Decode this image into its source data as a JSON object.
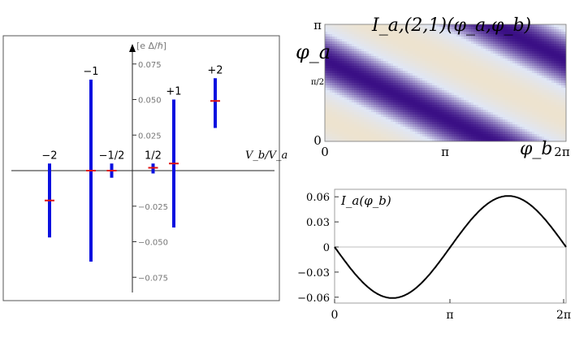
{
  "chart_data": [
    {
      "type": "scatter",
      "title": "",
      "xlabel": "V_b/V_a",
      "ylabel": "[e Δ/ℏ]",
      "ylim": [
        -0.085,
        0.085
      ],
      "yticks": [
        "0.075",
        "0.050",
        "0.025",
        "−0.025",
        "−0.050",
        "−0.075"
      ],
      "ytick_values": [
        0.075,
        0.05,
        0.025,
        -0.025,
        -0.05,
        -0.075
      ],
      "series": [
        {
          "label": "−2",
          "x": -2.0,
          "min": -0.047,
          "max": 0.005,
          "mid": -0.021
        },
        {
          "label": "−1",
          "x": -1.0,
          "min": -0.064,
          "max": 0.064,
          "mid": 0.0
        },
        {
          "label": "−1/2",
          "x": -0.5,
          "min": -0.005,
          "max": 0.005,
          "mid": 0.0
        },
        {
          "label": "1/2",
          "x": 0.5,
          "min": -0.002,
          "max": 0.005,
          "mid": 0.002
        },
        {
          "label": "+1",
          "x": 1.0,
          "min": -0.04,
          "max": 0.05,
          "mid": 0.005
        },
        {
          "label": "+2",
          "x": 2.0,
          "min": 0.03,
          "max": 0.065,
          "mid": 0.049
        }
      ],
      "bar_color": "#0a10e0",
      "mid_color": "#e01010"
    },
    {
      "type": "heatmap",
      "title": "I_a,(2,1)(φ_a,φ_b)",
      "function": "sin(2*phi_a + phi_b)",
      "xlabel": "φ_b",
      "ylabel": "φ_a",
      "xticks": [
        "0",
        "π",
        "2π"
      ],
      "yticks": [
        "0",
        "π/2",
        "π"
      ],
      "xlim": [
        0,
        6.283
      ],
      "ylim": [
        0,
        3.1416
      ],
      "colors": {
        "low": "#3a0f85",
        "mid": "#dfe6f6",
        "high": "#ede3cf"
      }
    },
    {
      "type": "line",
      "title": "",
      "label": "I_a(φ_b)",
      "amplitude": 0.061,
      "function": "-0.061*sin(x)",
      "xlim": [
        0,
        6.283
      ],
      "ylim": [
        -0.065,
        0.065
      ],
      "xticks": [
        "0",
        "π",
        "2π"
      ],
      "yticks": [
        "0.06",
        "0.03",
        "0",
        "−0.03",
        "−0.06"
      ],
      "ytick_values": [
        0.06,
        0.03,
        0,
        -0.03,
        -0.06
      ]
    }
  ]
}
